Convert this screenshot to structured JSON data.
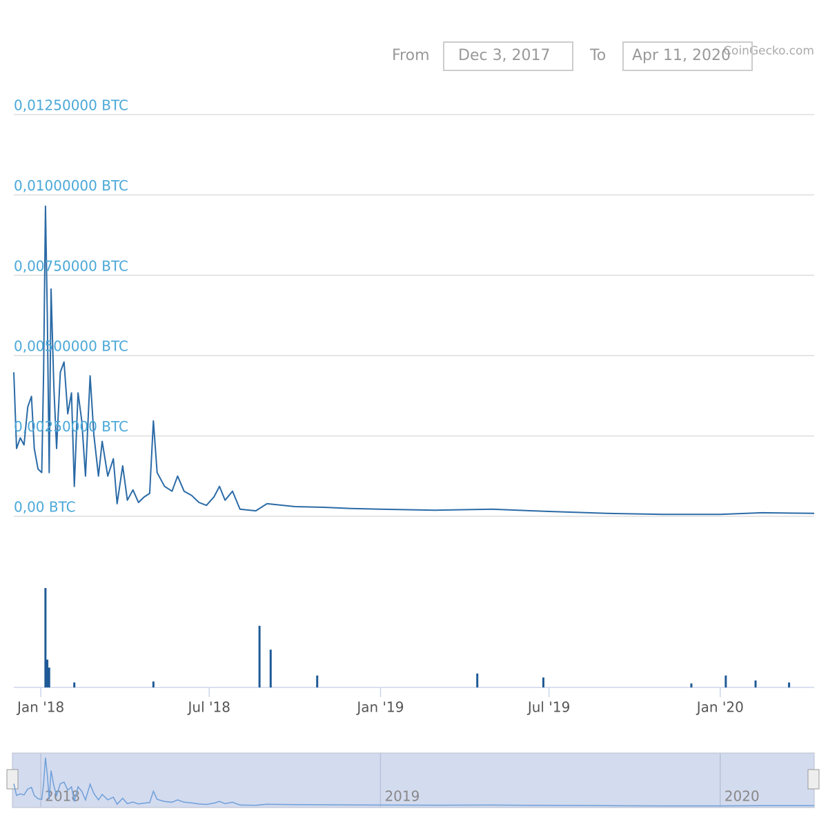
{
  "chart_data": [
    {
      "type": "line",
      "credit": "CoinGecko.com",
      "range_from_label": "From",
      "range_from": "Dec 3, 2017",
      "range_to_label": "To",
      "range_to": "Apr 11, 2020",
      "color": "#2a6aa6",
      "grid": true,
      "xlim": [
        "2017-12-03",
        "2020-04-11"
      ],
      "xticks": [
        {
          "value": "2018-01-01",
          "label": "Jan '18"
        },
        {
          "value": "2018-07-01",
          "label": "Jul '18"
        },
        {
          "value": "2019-01-01",
          "label": "Jan '19"
        },
        {
          "value": "2019-07-01",
          "label": "Jul '19"
        },
        {
          "value": "2020-01-01",
          "label": "Jan '20"
        }
      ],
      "ylim": [
        0,
        0.0125
      ],
      "yticks": [
        {
          "value": 0,
          "label": "0,00 BTC"
        },
        {
          "value": 0.0025,
          "label": "0,00250000 BTC"
        },
        {
          "value": 0.005,
          "label": "0,00500000 BTC"
        },
        {
          "value": 0.0075,
          "label": "0,00750000 BTC"
        },
        {
          "value": 0.01,
          "label": "0,01000000 BTC"
        },
        {
          "value": 0.0125,
          "label": "0,01250000 BTC"
        }
      ],
      "x": [
        "2017-12-03",
        "2017-12-06",
        "2017-12-10",
        "2017-12-14",
        "2017-12-18",
        "2017-12-22",
        "2017-12-25",
        "2017-12-29",
        "2018-01-02",
        "2018-01-04",
        "2018-01-06",
        "2018-01-08",
        "2018-01-10",
        "2018-01-12",
        "2018-01-15",
        "2018-01-18",
        "2018-01-22",
        "2018-01-26",
        "2018-01-30",
        "2018-02-03",
        "2018-02-06",
        "2018-02-10",
        "2018-02-14",
        "2018-02-18",
        "2018-02-23",
        "2018-02-27",
        "2018-03-04",
        "2018-03-08",
        "2018-03-14",
        "2018-03-20",
        "2018-03-24",
        "2018-03-30",
        "2018-04-04",
        "2018-04-10",
        "2018-04-16",
        "2018-04-22",
        "2018-04-28",
        "2018-05-02",
        "2018-05-06",
        "2018-05-14",
        "2018-05-22",
        "2018-05-28",
        "2018-06-04",
        "2018-06-12",
        "2018-06-20",
        "2018-06-28",
        "2018-07-06",
        "2018-07-12",
        "2018-07-18",
        "2018-07-26",
        "2018-08-03",
        "2018-08-20",
        "2018-09-01",
        "2018-10-01",
        "2018-11-01",
        "2018-12-01",
        "2019-01-01",
        "2019-03-01",
        "2019-05-01",
        "2019-07-01",
        "2019-09-01",
        "2019-11-01",
        "2020-01-01",
        "2020-02-15",
        "2020-04-11"
      ],
      "values": [
        0.00448,
        0.00211,
        0.00244,
        0.00222,
        0.0034,
        0.00373,
        0.00211,
        0.00147,
        0.00136,
        0.00448,
        0.00965,
        0.0062,
        0.00136,
        0.00707,
        0.00405,
        0.00211,
        0.00448,
        0.0048,
        0.00319,
        0.00384,
        0.00093,
        0.00384,
        0.00297,
        0.00125,
        0.00437,
        0.00254,
        0.00125,
        0.00233,
        0.00125,
        0.00179,
        0.00039,
        0.00157,
        0.0005,
        0.00082,
        0.00043,
        0.0006,
        0.00071,
        0.00297,
        0.00136,
        0.00093,
        0.00078,
        0.00125,
        0.00078,
        0.00065,
        0.00043,
        0.00034,
        0.0006,
        0.00093,
        0.0005,
        0.00078,
        0.00022,
        0.00017,
        0.00039,
        0.0003,
        0.00028,
        0.00024,
        0.00022,
        0.00019,
        0.00022,
        0.00015,
        9e-05,
        6e-05,
        6e-05,
        0.00011,
        9e-05
      ],
      "navigator_labels": [
        {
          "value": "2018-01-01",
          "label": "2018"
        },
        {
          "value": "2019-01-01",
          "label": "2019"
        },
        {
          "value": "2020-01-01",
          "label": "2020"
        }
      ]
    },
    {
      "type": "bar",
      "color": "#1f5a96",
      "ylim": [
        0,
        100
      ],
      "x": [
        "2018-01-06",
        "2018-01-08",
        "2018-01-10",
        "2018-02-06",
        "2018-05-02",
        "2018-08-24",
        "2018-09-05",
        "2018-10-25",
        "2019-04-15",
        "2019-06-25",
        "2019-12-01",
        "2020-01-07",
        "2020-02-08",
        "2020-03-15"
      ],
      "values": [
        100,
        28,
        20,
        5,
        6,
        62,
        38,
        12,
        14,
        10,
        4,
        12,
        7,
        5
      ]
    }
  ]
}
